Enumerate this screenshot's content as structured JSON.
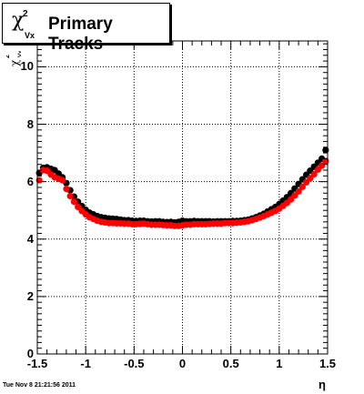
{
  "title": {
    "symbol": "χ",
    "superscript": "2",
    "subscript": "Vx",
    "text": "Primary Tracks"
  },
  "ylabel": {
    "symbol": "χ",
    "superscript": "2",
    "subscript": "Vx"
  },
  "xlabel": "η",
  "timestamp": "Tue Nov  8 21:21:56 2011",
  "colors": {
    "series_black": "#000000",
    "series_red": "#ff0000",
    "grid": "#000000"
  },
  "chart_data": {
    "type": "scatter",
    "xlim": [
      -1.5,
      1.5
    ],
    "ylim": [
      0,
      10.9
    ],
    "xticks": [
      "-1.5",
      "-1",
      "-0.5",
      "0",
      "0.5",
      "1",
      "1.5"
    ],
    "xtick_values": [
      -1.5,
      -1,
      -0.5,
      0,
      0.5,
      1,
      1.5
    ],
    "yticks": [
      "0",
      "2",
      "4",
      "6",
      "8",
      "10"
    ],
    "ytick_values": [
      0,
      2,
      4,
      6,
      8,
      10
    ],
    "grid": true,
    "series": [
      {
        "color": "#000000",
        "x": [
          -1.48,
          -1.44,
          -1.4,
          -1.36,
          -1.32,
          -1.28,
          -1.24,
          -1.2,
          -1.16,
          -1.12,
          -1.08,
          -1.04,
          -1.0,
          -0.96,
          -0.92,
          -0.88,
          -0.84,
          -0.8,
          -0.76,
          -0.72,
          -0.68,
          -0.64,
          -0.6,
          -0.56,
          -0.52,
          -0.48,
          -0.44,
          -0.4,
          -0.36,
          -0.32,
          -0.28,
          -0.24,
          -0.2,
          -0.16,
          -0.12,
          -0.08,
          -0.04,
          0.0,
          0.04,
          0.08,
          0.12,
          0.16,
          0.2,
          0.24,
          0.28,
          0.32,
          0.36,
          0.4,
          0.44,
          0.48,
          0.52,
          0.56,
          0.6,
          0.64,
          0.68,
          0.72,
          0.76,
          0.8,
          0.84,
          0.88,
          0.92,
          0.96,
          1.0,
          1.04,
          1.08,
          1.12,
          1.16,
          1.2,
          1.24,
          1.28,
          1.32,
          1.36,
          1.4,
          1.44,
          1.48
        ],
        "y": [
          6.3,
          6.48,
          6.5,
          6.45,
          6.4,
          6.28,
          6.15,
          5.95,
          5.7,
          5.48,
          5.3,
          5.15,
          5.02,
          4.92,
          4.86,
          4.8,
          4.76,
          4.74,
          4.72,
          4.71,
          4.7,
          4.68,
          4.66,
          4.66,
          4.64,
          4.63,
          4.64,
          4.64,
          4.62,
          4.61,
          4.62,
          4.62,
          4.6,
          4.59,
          4.6,
          4.58,
          4.6,
          4.64,
          4.62,
          4.62,
          4.63,
          4.62,
          4.62,
          4.62,
          4.62,
          4.61,
          4.62,
          4.62,
          4.62,
          4.62,
          4.63,
          4.63,
          4.64,
          4.66,
          4.68,
          4.72,
          4.76,
          4.82,
          4.88,
          4.96,
          5.04,
          5.12,
          5.22,
          5.34,
          5.46,
          5.6,
          5.76,
          5.92,
          6.08,
          6.24,
          6.38,
          6.52,
          6.66,
          6.8,
          7.1
        ]
      },
      {
        "color": "#ff0000",
        "x": [
          -1.48,
          -1.44,
          -1.4,
          -1.36,
          -1.32,
          -1.28,
          -1.24,
          -1.2,
          -1.16,
          -1.12,
          -1.08,
          -1.04,
          -1.0,
          -0.96,
          -0.92,
          -0.88,
          -0.84,
          -0.8,
          -0.76,
          -0.72,
          -0.68,
          -0.64,
          -0.6,
          -0.56,
          -0.52,
          -0.48,
          -0.44,
          -0.4,
          -0.36,
          -0.32,
          -0.28,
          -0.24,
          -0.2,
          -0.16,
          -0.12,
          -0.08,
          -0.04,
          0.0,
          0.04,
          0.08,
          0.12,
          0.16,
          0.2,
          0.24,
          0.28,
          0.32,
          0.36,
          0.4,
          0.44,
          0.48,
          0.52,
          0.56,
          0.6,
          0.64,
          0.68,
          0.72,
          0.76,
          0.8,
          0.84,
          0.88,
          0.92,
          0.96,
          1.0,
          1.04,
          1.08,
          1.12,
          1.16,
          1.2,
          1.24,
          1.28,
          1.32,
          1.36,
          1.4,
          1.44,
          1.48
        ],
        "y": [
          6.05,
          6.4,
          6.38,
          6.25,
          6.15,
          6.1,
          6.05,
          5.75,
          5.5,
          5.3,
          5.12,
          4.98,
          4.86,
          4.76,
          4.7,
          4.64,
          4.6,
          4.58,
          4.56,
          4.56,
          4.55,
          4.55,
          4.54,
          4.54,
          4.52,
          4.52,
          4.53,
          4.54,
          4.52,
          4.5,
          4.5,
          4.5,
          4.49,
          4.48,
          4.48,
          4.46,
          4.46,
          4.48,
          4.5,
          4.5,
          4.52,
          4.52,
          4.52,
          4.52,
          4.53,
          4.54,
          4.54,
          4.54,
          4.56,
          4.56,
          4.56,
          4.57,
          4.58,
          4.6,
          4.62,
          4.66,
          4.7,
          4.75,
          4.8,
          4.86,
          4.92,
          4.98,
          5.06,
          5.16,
          5.26,
          5.38,
          5.52,
          5.66,
          5.82,
          5.98,
          6.12,
          6.26,
          6.42,
          6.56,
          6.72
        ]
      }
    ]
  }
}
